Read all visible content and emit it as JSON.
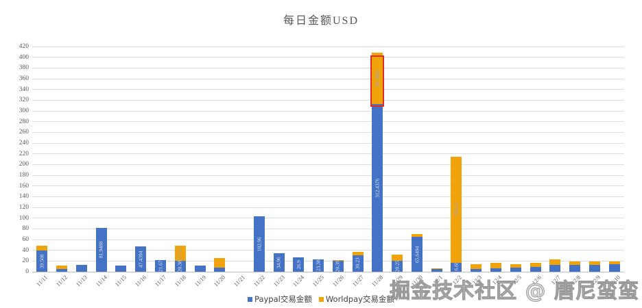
{
  "page": {
    "watermark": "掘金技术社区 @ 唐尼蛮蛮"
  },
  "chart_data": {
    "type": "bar",
    "stacked": true,
    "title": "每日金额USD",
    "xlabel": "",
    "ylabel": "",
    "ylim": [
      0,
      420
    ],
    "ytick_step": 20,
    "grid": true,
    "legend_position": "bottom",
    "categories": [
      "11/11",
      "11/12",
      "11/13",
      "11/14",
      "11/15",
      "11/16",
      "11/17",
      "11/18",
      "11/19",
      "11/20",
      "11/21",
      "11/22",
      "11/23",
      "11/24",
      "11/25",
      "11/26",
      "11/27",
      "11/28",
      "11/29",
      "11/30",
      "12/1",
      "12/2",
      "12/3",
      "12/4",
      "12/5",
      "12/6",
      "12/7",
      "12/8",
      "12/9",
      "12/10"
    ],
    "series": [
      {
        "name": "Paypal交易金额",
        "color": "#4472C4",
        "label_color": "#D9E4F4",
        "values": [
          39.508,
          5.2,
          13,
          81.9488,
          12,
          47.4394,
          21.67,
          20.38,
          12,
          8.2,
          0,
          102.96,
          34.96,
          26.9,
          23.38,
          20.39,
          30.23,
          312.4376,
          20.25,
          65.6494,
          4.5,
          16.68,
          4.5,
          6.5,
          7.5,
          8.5,
          13.4,
          12.7,
          12.3,
          13.6
        ],
        "labels": [
          "39.508",
          null,
          null,
          "81.9488",
          null,
          "47.4394",
          "21.67",
          "20.38",
          null,
          null,
          null,
          "102.96",
          "34.96",
          "26.9",
          "23.38",
          "20.39",
          "30.23",
          "312.4376",
          "20.25",
          "65.6494",
          null,
          "16.68",
          null,
          null,
          null,
          null,
          null,
          null,
          null,
          null
        ]
      },
      {
        "name": "Worldpay交易金额",
        "color": "#F0A30A",
        "label_color": "#97A6C6",
        "values": [
          8.5,
          6.8,
          0,
          0,
          0,
          0,
          0,
          27.51,
          0,
          16.8,
          0,
          0,
          0,
          0,
          0,
          1.8,
          7.2,
          96.3082,
          11.5,
          4.2,
          2.2,
          198.31,
          9,
          9.5,
          6.5,
          8,
          9,
          6,
          6.5,
          5.5
        ],
        "labels": [
          null,
          null,
          null,
          null,
          null,
          null,
          null,
          "27.51",
          null,
          null,
          null,
          null,
          null,
          null,
          null,
          null,
          null,
          "96.3082",
          null,
          null,
          null,
          "198.31",
          null,
          null,
          null,
          null,
          null,
          null,
          null,
          null
        ]
      }
    ],
    "highlight": {
      "category": "11/28",
      "series_index": 1,
      "color": "#E02B20"
    }
  }
}
